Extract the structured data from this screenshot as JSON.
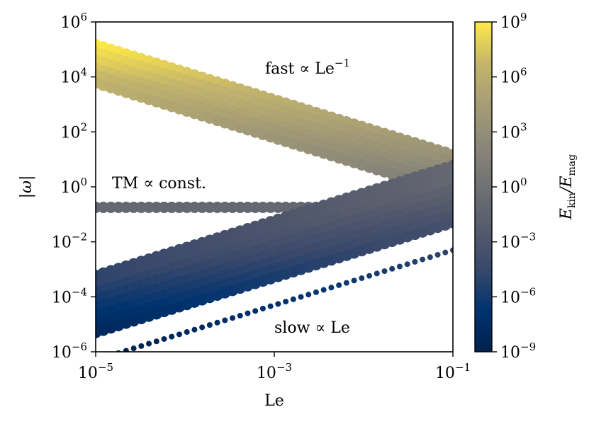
{
  "chart_data": {
    "type": "scatter",
    "xlabel": "Le",
    "ylabel": "|ω|",
    "x_scale": "log",
    "y_scale": "log",
    "xlim": [
      1e-05,
      0.1
    ],
    "ylim": [
      1e-06,
      1000000.0
    ],
    "x_ticks": [
      {
        "base": "10",
        "exp": "−5",
        "value": 1e-05
      },
      {
        "base": "10",
        "exp": "−3",
        "value": 0.001
      },
      {
        "base": "10",
        "exp": "−1",
        "value": 0.1
      }
    ],
    "y_ticks": [
      {
        "base": "10",
        "exp": "−6",
        "value": 1e-06
      },
      {
        "base": "10",
        "exp": "−4",
        "value": 0.0001
      },
      {
        "base": "10",
        "exp": "−2",
        "value": 0.01
      },
      {
        "base": "10",
        "exp": "0",
        "value": 1
      },
      {
        "base": "10",
        "exp": "2",
        "value": 100.0
      },
      {
        "base": "10",
        "exp": "4",
        "value": 10000.0
      },
      {
        "base": "10",
        "exp": "6",
        "value": 1000000.0
      }
    ],
    "grid": false,
    "colorbar": {
      "label": "E_kin/E_mag",
      "colormap": "cividis",
      "scale": "log",
      "range": [
        1e-09,
        1000000000.0
      ],
      "ticks": [
        {
          "base": "10",
          "exp": "−9",
          "value": 1e-09
        },
        {
          "base": "10",
          "exp": "−6",
          "value": 1e-06
        },
        {
          "base": "10",
          "exp": "−3",
          "value": 0.001
        },
        {
          "base": "10",
          "exp": "0",
          "value": 1
        },
        {
          "base": "10",
          "exp": "3",
          "value": 1000.0
        },
        {
          "base": "10",
          "exp": "6",
          "value": 1000000.0
        },
        {
          "base": "10",
          "exp": "9",
          "value": 1000000000.0
        }
      ]
    },
    "annotations": {
      "fast": {
        "text": "fast ∝ Le",
        "sup": "−1"
      },
      "tm": {
        "text": "TM ∝ const."
      },
      "slow": {
        "text": "slow ∝ Le"
      }
    },
    "families": [
      {
        "name": "fast",
        "exponent": -1,
        "count": 6,
        "omega_at_min": [
          150000.0,
          80000.0,
          40000.0,
          20000.0,
          12000.0,
          6000.0
        ],
        "ratio_at_min": [
          1000000000.0,
          300000000.0,
          100000000.0,
          30000000.0,
          10000000.0,
          3000000.0
        ],
        "ratio_at_max": [
          3000.0,
          1000.0,
          300.0,
          100.0,
          30.0,
          10.0
        ]
      },
      {
        "name": "tm",
        "exponent": 0,
        "count": 1,
        "omega_at_min": [
          0.18
        ],
        "omega_at_max": [
          0.18
        ],
        "ratio": 0.1
      },
      {
        "name": "slow",
        "exponent": 1,
        "count": 8,
        "omega_at_min": [
          0.0006,
          0.0003,
          0.00015,
          8e-05,
          4e-05,
          2e-05,
          1e-05,
          5e-06
        ],
        "ratio_at_min": [
          1e-05,
          1e-05,
          3e-06,
          1e-06,
          3e-07,
          1e-07,
          3e-08,
          1e-08
        ],
        "ratio_at_max": [
          0.1,
          0.1,
          0.1,
          0.03,
          0.01,
          0.003,
          0.001,
          0.0003
        ]
      },
      {
        "name": "slowest",
        "exponent": 1,
        "count": 1,
        "omega_at_min": [
          5e-07
        ],
        "ratio_at_min": [
          1e-09
        ],
        "ratio_at_max": [
          1e-05
        ]
      }
    ]
  }
}
